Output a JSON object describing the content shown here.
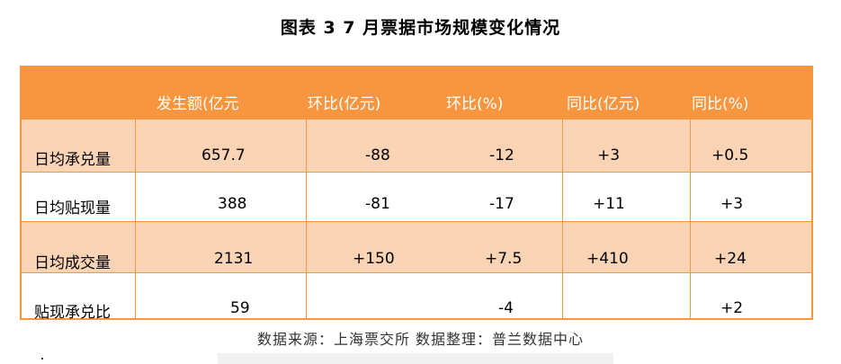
{
  "title": "图表 3   7 月票据市场规模变化情况",
  "table": {
    "headers": [
      "",
      "发生额(亿元",
      "环比(亿元)",
      "环比(%)",
      "同比(亿元)",
      "同比(%)"
    ],
    "rows": [
      {
        "label": "日均承兑量",
        "values": [
          "657.7",
          "-88",
          "-12",
          "+3",
          "+0.5"
        ]
      },
      {
        "label": "日均贴现量",
        "values": [
          "388",
          "-81",
          "-17",
          "+11",
          "+3"
        ]
      },
      {
        "label": "日均成交量",
        "values": [
          "2131",
          "+150",
          "+7.5",
          "+410",
          "+24"
        ]
      },
      {
        "label": "贴现承兑比",
        "values": [
          "59",
          "",
          "-4",
          "",
          "+2"
        ]
      }
    ]
  },
  "source": "数据来源：上海票交所   数据整理：普兰数据中心",
  "colors": {
    "header": "#f7963f",
    "shade": "#fbd3b5"
  }
}
